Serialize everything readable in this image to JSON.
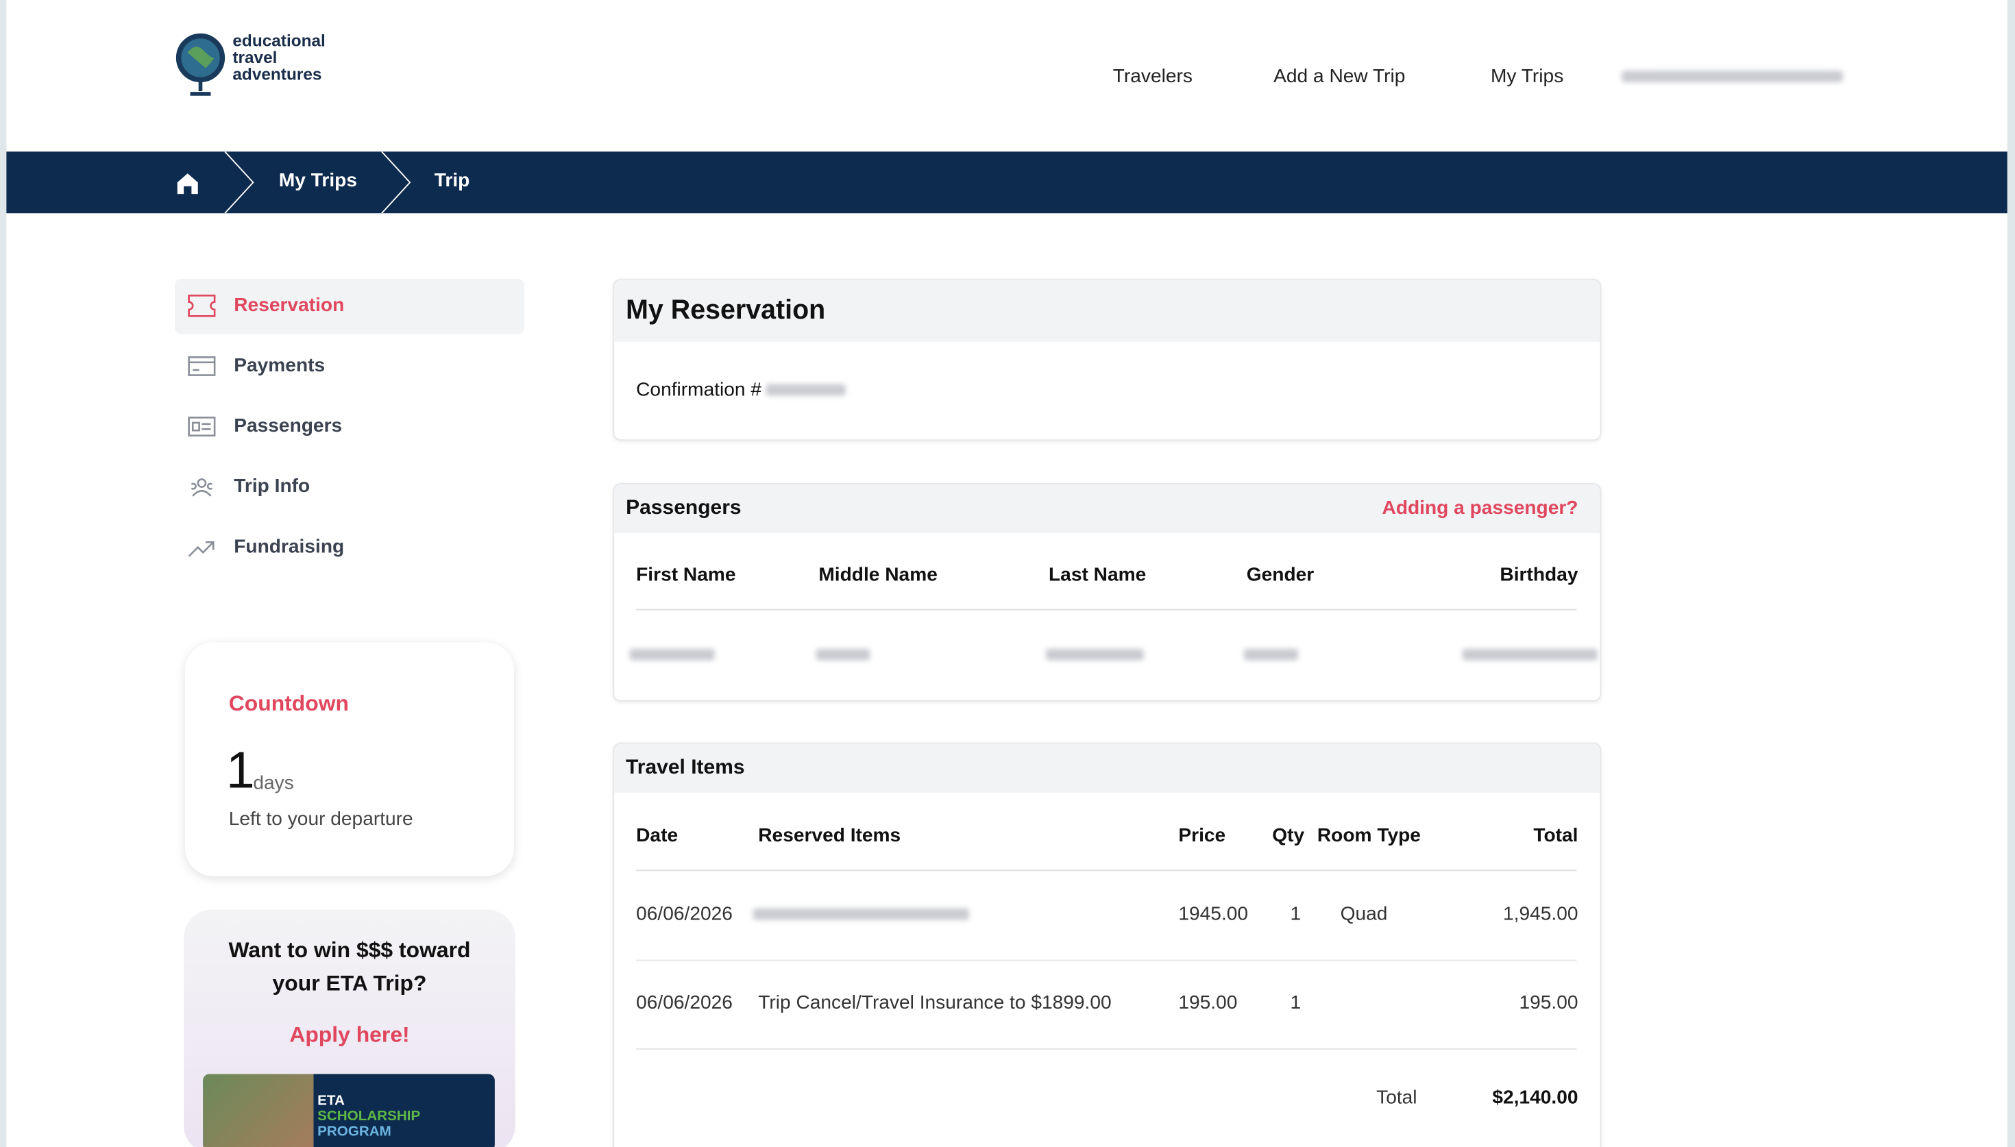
{
  "header": {
    "logo": [
      "educational",
      "travel",
      "adventures"
    ],
    "nav": [
      "Travelers",
      "Add a New Trip",
      "My Trips"
    ]
  },
  "breadcrumb": [
    "My Trips",
    "Trip"
  ],
  "sidebar": {
    "menu": [
      "Reservation",
      "Payments",
      "Passengers",
      "Trip Info",
      "Fundraising"
    ],
    "countdown": {
      "title": "Countdown",
      "number": "1",
      "unit": "days",
      "caption": "Left to your departure"
    },
    "promo": {
      "heading": "Want to win $$$ toward your ETA Trip?",
      "link": "Apply here!",
      "image_text": [
        "ETA",
        "SCHOLARSHIP",
        "PROGRAM"
      ]
    }
  },
  "reservation": {
    "title": "My Reservation",
    "confirmation": "Confirmation #"
  },
  "passengers": {
    "title": "Passengers",
    "action": "Adding a passenger?",
    "columns": [
      "First Name",
      "Middle Name",
      "Last Name",
      "Gender",
      "Birthday"
    ]
  },
  "travel_items": {
    "title": "Travel Items",
    "columns": [
      "Date",
      "Reserved Items",
      "Price",
      "Qty",
      "Room Type",
      "Total"
    ],
    "rows": [
      [
        "06/06/2026",
        "",
        "1945.00",
        "1",
        "Quad",
        "1,945.00"
      ],
      [
        "06/06/2026",
        "Trip Cancel/Travel Insurance to $1899.00",
        "195.00",
        "1",
        "",
        "195.00"
      ]
    ],
    "total_label": "Total",
    "total": "$2,140.00"
  }
}
